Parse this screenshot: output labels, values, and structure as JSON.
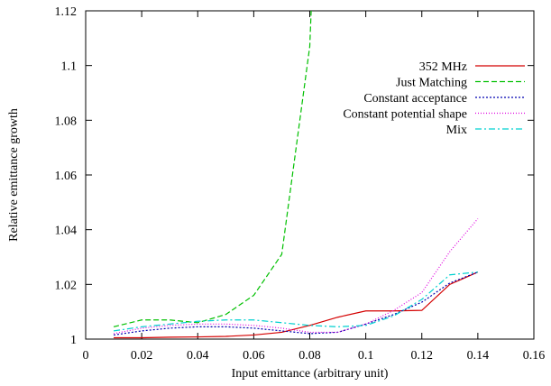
{
  "chart_data": {
    "type": "line",
    "title": "",
    "xlabel": "Input emittance (arbitrary unit)",
    "ylabel": "Relative emittance growth",
    "xlim": [
      0,
      0.16
    ],
    "ylim": [
      1,
      1.12
    ],
    "x_ticks": [
      "0",
      "0.02",
      "0.04",
      "0.06",
      "0.08",
      "0.1",
      "0.12",
      "0.14",
      "0.16"
    ],
    "y_ticks": [
      "1",
      "1.02",
      "1.04",
      "1.06",
      "1.08",
      "1.1",
      "1.12"
    ],
    "grid": false,
    "legend_position": "top-right",
    "series": [
      {
        "name": "352 MHz",
        "color": "#d40000",
        "dash": "solid",
        "x": [
          0.01,
          0.02,
          0.03,
          0.04,
          0.05,
          0.06,
          0.07,
          0.08,
          0.09,
          0.1,
          0.11,
          0.12,
          0.13,
          0.14
        ],
        "y": [
          1.0005,
          1.0005,
          1.0007,
          1.0008,
          1.001,
          1.0015,
          1.0025,
          1.005,
          1.008,
          1.0103,
          1.0103,
          1.0105,
          1.02,
          1.0245
        ]
      },
      {
        "name": "Just Matching",
        "color": "#00c000",
        "dash": "dashed",
        "x": [
          0.01,
          0.02,
          0.03,
          0.04,
          0.05,
          0.06,
          0.07,
          0.08,
          0.0805
        ],
        "y": [
          1.0045,
          1.007,
          1.007,
          1.006,
          1.009,
          1.016,
          1.031,
          1.107,
          1.12
        ]
      },
      {
        "name": "Constant acceptance",
        "color": "#0000b0",
        "dash": "dotted",
        "x": [
          0.01,
          0.02,
          0.03,
          0.04,
          0.05,
          0.06,
          0.07,
          0.08,
          0.09,
          0.1,
          0.11,
          0.12,
          0.13,
          0.14
        ],
        "y": [
          1.0015,
          1.003,
          1.004,
          1.0045,
          1.0045,
          1.004,
          1.003,
          1.002,
          1.0025,
          1.0055,
          1.009,
          1.0135,
          1.0205,
          1.0245
        ]
      },
      {
        "name": "Constant potential shape",
        "color": "#e000e0",
        "dash": "dotted-fine",
        "x": [
          0.01,
          0.02,
          0.03,
          0.04,
          0.05,
          0.06,
          0.07,
          0.08,
          0.09,
          0.1,
          0.11,
          0.12,
          0.13,
          0.14
        ],
        "y": [
          1.002,
          1.004,
          1.005,
          1.0055,
          1.0055,
          1.005,
          1.004,
          1.0025,
          1.0025,
          1.0055,
          1.0105,
          1.017,
          1.032,
          1.044
        ]
      },
      {
        "name": "Mix",
        "color": "#00d0d0",
        "dash": "dashdot",
        "x": [
          0.01,
          0.02,
          0.03,
          0.04,
          0.05,
          0.06,
          0.07,
          0.08,
          0.09,
          0.1,
          0.11,
          0.12,
          0.13,
          0.14
        ],
        "y": [
          1.003,
          1.0045,
          1.0055,
          1.0065,
          1.007,
          1.007,
          1.006,
          1.005,
          1.0045,
          1.005,
          1.0085,
          1.0145,
          1.0235,
          1.0245
        ]
      }
    ]
  }
}
